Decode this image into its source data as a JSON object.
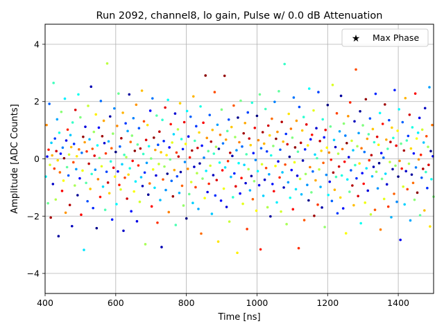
{
  "chart_data": {
    "type": "scatter",
    "title": "Run 2092, channel8, lo gain, Pulse w/ 0.0 dB Attenuation",
    "xlabel": "Time [ns]",
    "ylabel": "Amplitude [ADC Counts]",
    "xlim": [
      400,
      1500
    ],
    "ylim": [
      -4.7,
      4.7
    ],
    "xticks": [
      400,
      600,
      800,
      1000,
      1200,
      1400
    ],
    "yticks": [
      -4,
      -2,
      0,
      2,
      4
    ],
    "grid": true,
    "legend_position": "top-right",
    "colormap": "jet",
    "series": [
      {
        "name": "Max Phase",
        "marker": "star",
        "color": "#000000",
        "x": [],
        "y": []
      }
    ],
    "scatter": {
      "x_start": 400,
      "x_step": 2,
      "x_end": 1500,
      "phases": 4,
      "y": [
        0.45,
        -0.62,
        1.18,
        0.08,
        -1.55,
        0.32,
        1.92,
        -0.21,
        -2.05,
        0.56,
        0.12,
        -0.88,
        2.65,
        -0.34,
        0.71,
        -1.42,
        0.27,
        1.38,
        -0.05,
        -2.7,
        0.91,
        -0.47,
        0.18,
        1.64,
        -1.12,
        0.39,
        -0.76,
        0.02,
        2.1,
        -1.88,
        0.64,
        -0.29,
        1.02,
        -0.58,
        0.15,
        -1.61,
        0.83,
        0.41,
        -2.35,
        1.27,
        -0.12,
        0.52,
        -0.93,
        1.71,
        -0.36,
        0.09,
        -1.27,
        2.25,
        0.33,
        -0.68,
        1.45,
        -1.95,
        0.21,
        -0.41,
        0.77,
        -3.18,
        0.58,
        1.12,
        -0.84,
        0.26,
        -1.48,
        1.85,
        -0.17,
        0.68,
        -1.05,
        2.52,
        -0.53,
        0.35,
        -1.72,
        0.94,
        0.11,
        -0.38,
        1.55,
        -2.42,
        0.47,
        -0.71,
        1.09,
        0.03,
        -1.33,
        2.02,
        -0.26,
        0.79,
        -0.97,
        1.33,
        0.55,
        -1.78,
        0.19,
        -0.45,
        3.33,
        -0.83,
        0.61,
        -1.2,
        1.48,
        -0.09,
        0.37,
        -2.12,
        0.88,
        -0.31,
        1.76,
        -0.62,
        0.24,
        -1.58,
        1.15,
        -0.44,
        2.28,
        -0.91,
        0.43,
        -1.07,
        0.72,
        -0.19,
        1.61,
        -2.51,
        0.14,
        -0.66,
        1.24,
        0.06,
        -1.39,
        0.97,
        -0.55,
        2.25,
        -0.33,
        0.59,
        -1.83,
        0.81,
        -0.07,
        1.42,
        -1.14,
        0.28,
        -0.79,
        1.89,
        -2.18,
        0.5,
        -0.23,
        1.07,
        -1.5,
        0.36,
        -0.64,
        2.38,
        -0.95,
        0.17,
        1.31,
        -0.48,
        -2.98,
        0.66,
        -0.14,
        1.18,
        -1.25,
        0.44,
        -0.86,
        1.68,
        0.01,
        -1.66,
        2.11,
        -0.37,
        0.74,
        -1.01,
        0.31,
        -0.58,
        1.51,
        -2.23,
        0.49,
        -0.18,
        0.95,
        -1.44,
        0.23,
        -3.08,
        1.36,
        -0.72,
        0.62,
        -0.27,
        1.79,
        -1.09,
        0.13,
        -0.52,
        2.06,
        -1.86,
        0.4,
        -0.02,
        1.21,
        -0.77,
        0.57,
        -1.31,
        0.86,
        -0.39,
        1.58,
        -2.31,
        0.22,
        -0.61,
        1.03,
        0.08,
        -1.19,
        1.94,
        -0.46,
        0.69,
        -0.94,
        0.34,
        -1.63,
        1.28,
        -0.11,
        0.52,
        -2.08,
        1.67,
        -0.35,
        0.78,
        -1.23,
        0.05,
        1.47,
        -0.81,
        0.29,
        -1.54,
        2.18,
        -0.28,
        0.63,
        -0.99,
        1.14,
        -0.5,
        0.38,
        -1.75,
        0.92,
        -0.16,
        1.83,
        -2.61,
        0.46,
        -0.69,
        1.26,
        0.04,
        -1.37,
        2.91,
        -0.42,
        0.73,
        -1.16,
        0.27,
        -0.87,
        1.53,
        -0.24,
        0.6,
        -1.92,
        1.01,
        -0.57,
        0.18,
        2.33,
        -1.28,
        0.42,
        -0.74,
        1.19,
        -2.89,
        0.35,
        -0.13,
        0.84,
        -1.46,
        1.72,
        -0.4,
        0.54,
        -1.04,
        2.9,
        -0.3,
        0.67,
        -1.68,
        0.97,
        -0.08,
        1.37,
        -2.19,
        0.21,
        -0.63,
        1.11,
        0.1,
        -1.34,
        1.86,
        -0.51,
        0.76,
        -0.96,
        0.3,
        -3.28,
        1.44,
        -0.15,
        0.58,
        -1.21,
        2.03,
        -0.67,
        0.43,
        -1.57,
        0.89,
        -0.21,
        1.25,
        -0.85,
        0.16,
        -2.45,
        1.62,
        -0.36,
        0.71,
        -1.1,
        0.48,
        -0.6,
        1.96,
        -1.41,
        0.2,
        -0.78,
        1.08,
        -0.04,
        -1.81,
        1.5,
        -0.43,
        0.65,
        -0.92,
        2.25,
        -3.16,
        0.37,
        -0.19,
        0.93,
        -1.29,
        0.53,
        -0.73,
        1.74,
        -0.32,
        0.26,
        -1.69,
        1.16,
        -0.54,
        0.82,
        -2.01,
        0.12,
        1.4,
        -0.88,
        0.45,
        -1.13,
        1.99,
        -0.25,
        0.7,
        -1.52,
        0.94,
        -0.09,
        2.36,
        -0.65,
        0.32,
        -1.84,
        1.29,
        -0.47,
        0.6,
        -1.0,
        3.31,
        -0.2,
        0.87,
        -2.28,
        0.51,
        -0.82,
        1.57,
        0.07,
        -1.36,
        1.05,
        -0.39,
        0.74,
        -1.76,
        2.14,
        -0.12,
        0.4,
        -1.06,
        1.33,
        -0.59,
        0.25,
        -3.12,
        1.81,
        -0.7,
        0.56,
        -1.24,
        0.99,
        -0.06,
        1.46,
        -2.14,
        0.33,
        -0.53,
        1.2,
        -0.91,
        0.47,
        -1.45,
        2.45,
        -0.29,
        0.68,
        -1.17,
        0.84,
        -0.44,
        1.69,
        -1.99,
        0.15,
        -0.75,
        1.07,
        0.02,
        -1.6,
        2.33,
        -0.37,
        0.62,
        -0.98,
        0.28,
        -1.7,
        1.38,
        -0.14,
        0.75,
        -2.38,
        1.01,
        -0.56,
        0.39,
        1.88,
        -1.26,
        0.22,
        -0.8,
        1.13,
        -0.03,
        -1.47,
        2.58,
        -0.48,
        0.66,
        -1.08,
        0.41,
        -0.63,
        1.59,
        -1.9,
        0.18,
        -0.27,
        0.96,
        -1.35,
        2.2,
        -0.58,
        0.34,
        -1.73,
        1.23,
        -0.1,
        0.81,
        -2.6,
        0.55,
        -0.72,
        1.49,
        0.06,
        -1.15,
        1.97,
        -0.4,
        0.63,
        -0.93,
        0.3,
        -1.62,
        1.31,
        -0.22,
        3.12,
        -0.68,
        0.44,
        -1.3,
        0.9,
        -0.16,
        1.66,
        -2.25,
        0.37,
        -0.5,
        1.17,
        -0.87,
        0.24,
        -1.53,
        2.08,
        -0.33,
        0.7,
        -1.11,
        0.86,
        -0.05,
        1.41,
        -1.94,
        0.13,
        -0.61,
        1.04,
        -0.28,
        0.58,
        -1.78,
        2.27,
        -0.45,
        0.77,
        -1.03,
        0.49,
        -0.15,
        1.6,
        -2.47,
        0.2,
        -0.7,
        1.22,
        0.04,
        -1.4,
        1.9,
        -0.52,
        0.67,
        -0.89,
        0.35,
        -1.67,
        1.35,
        -0.11,
        0.59,
        -2.04,
        1.09,
        -0.36,
        0.73,
        -1.22,
        2.4,
        -0.24,
        0.46,
        -1.5,
        0.98,
        -0.62,
        1.73,
        -0.07,
        -2.83,
        0.53,
        -0.34,
        1.28,
        -0.97,
        0.29,
        -1.59,
        2.12,
        -0.43,
        0.64,
        -1.06,
        0.8,
        -0.17,
        1.54,
        -2.15,
        0.36,
        -0.55,
        1.1,
        -0.84,
        0.19,
        -1.43,
        2.28,
        -0.3,
        0.71,
        -1.18,
        0.91,
        -0.02,
        1.43,
        -1.97,
        0.14,
        -0.66,
        1.02,
        -0.35,
        0.57,
        -1.8,
        1.77,
        -0.46,
        0.79,
        -1.02,
        0.42,
        -0.21,
        2.5,
        -2.36,
        0.27,
        -0.71,
        1.18,
        0.09,
        -1.32,
        1.84,
        -0.49,
        0.69,
        -0.92,
        0.32,
        -1.64,
        1.3,
        -0.13,
        0.61,
        -2.1,
        1.06,
        -0.38,
        0.75,
        -1.27,
        2.18,
        -0.26,
        0.48,
        -1.49,
        0.95,
        -0.6,
        1.7,
        -0.08,
        -1.9,
        0.5,
        -0.33,
        1.24,
        -0.99,
        0.31,
        -1.56,
        2.02,
        -0.42,
        0.63,
        -1.09,
        0.83,
        -0.18,
        1.52,
        -2.2,
        0.38,
        -0.54,
        1.12,
        -0.85,
        0.2,
        -1.44,
        2.21,
        -0.31,
        0.72,
        -1.19,
        0.89,
        -0.03,
        1.45,
        -1.96,
        0.16,
        -0.64,
        1.03,
        -0.36,
        0.56,
        -1.79,
        1.79,
        -0.47,
        0.78,
        -1.04,
        0.43,
        -0.2,
        2.3,
        -2.4,
        0.26,
        -0.72,
        1.16,
        0.07,
        -1.33,
        1.87,
        -0.5,
        0.68,
        -0.9,
        0.33,
        -1.65,
        1.32,
        -0.12,
        0.6,
        -2.07,
        1.05,
        -0.39,
        0.74,
        -1.25,
        2.15,
        -0.25,
        0.49,
        -1.48,
        0.96
      ]
    }
  }
}
